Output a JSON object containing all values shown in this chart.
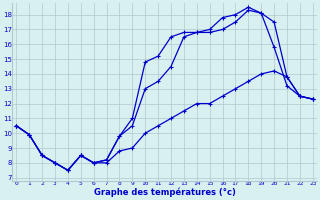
{
  "xlabel": "Graphe des températures (°c)",
  "background_color": "#d8f0f0",
  "grid_color": "#b0c8d0",
  "line_color": "#0000cc",
  "x_ticks": [
    0,
    1,
    2,
    3,
    4,
    5,
    6,
    7,
    8,
    9,
    10,
    11,
    12,
    13,
    14,
    15,
    16,
    17,
    18,
    19,
    20,
    21,
    22,
    23
  ],
  "y_ticks": [
    7,
    8,
    9,
    10,
    11,
    12,
    13,
    14,
    15,
    16,
    17,
    18
  ],
  "ylim": [
    6.8,
    18.8
  ],
  "xlim": [
    -0.3,
    23.3
  ],
  "line1_x": [
    0,
    1,
    2,
    3,
    4,
    5,
    6,
    7,
    8,
    9,
    10,
    11,
    12,
    13,
    14,
    15,
    16,
    17,
    18,
    19,
    20,
    21,
    22,
    23
  ],
  "line1_y": [
    10.5,
    9.9,
    8.5,
    8.0,
    7.5,
    8.5,
    8.0,
    8.0,
    8.8,
    9.0,
    10.0,
    10.5,
    11.0,
    11.5,
    12.0,
    12.0,
    12.5,
    13.0,
    13.5,
    14.0,
    14.2,
    13.8,
    12.5,
    12.3
  ],
  "line2_x": [
    0,
    1,
    2,
    3,
    4,
    5,
    6,
    7,
    8,
    9,
    10,
    11,
    12,
    13,
    14,
    15,
    16,
    17,
    18,
    19,
    20,
    21,
    22,
    23
  ],
  "line2_y": [
    10.5,
    9.9,
    8.5,
    8.0,
    7.5,
    8.5,
    8.0,
    8.2,
    9.8,
    10.5,
    13.0,
    13.5,
    14.5,
    16.5,
    16.8,
    16.8,
    17.0,
    17.5,
    18.3,
    18.1,
    15.8,
    13.2,
    12.5,
    12.3
  ],
  "line3_x": [
    0,
    1,
    2,
    3,
    4,
    5,
    6,
    7,
    8,
    9,
    10,
    11,
    12,
    13,
    14,
    15,
    16,
    17,
    18,
    19,
    20,
    21,
    22,
    23
  ],
  "line3_y": [
    10.5,
    9.9,
    8.5,
    8.0,
    7.5,
    8.5,
    8.0,
    8.2,
    9.8,
    11.0,
    14.8,
    15.2,
    16.5,
    16.8,
    16.8,
    17.0,
    17.8,
    18.0,
    18.5,
    18.1,
    17.5,
    13.8,
    12.5,
    12.3
  ]
}
